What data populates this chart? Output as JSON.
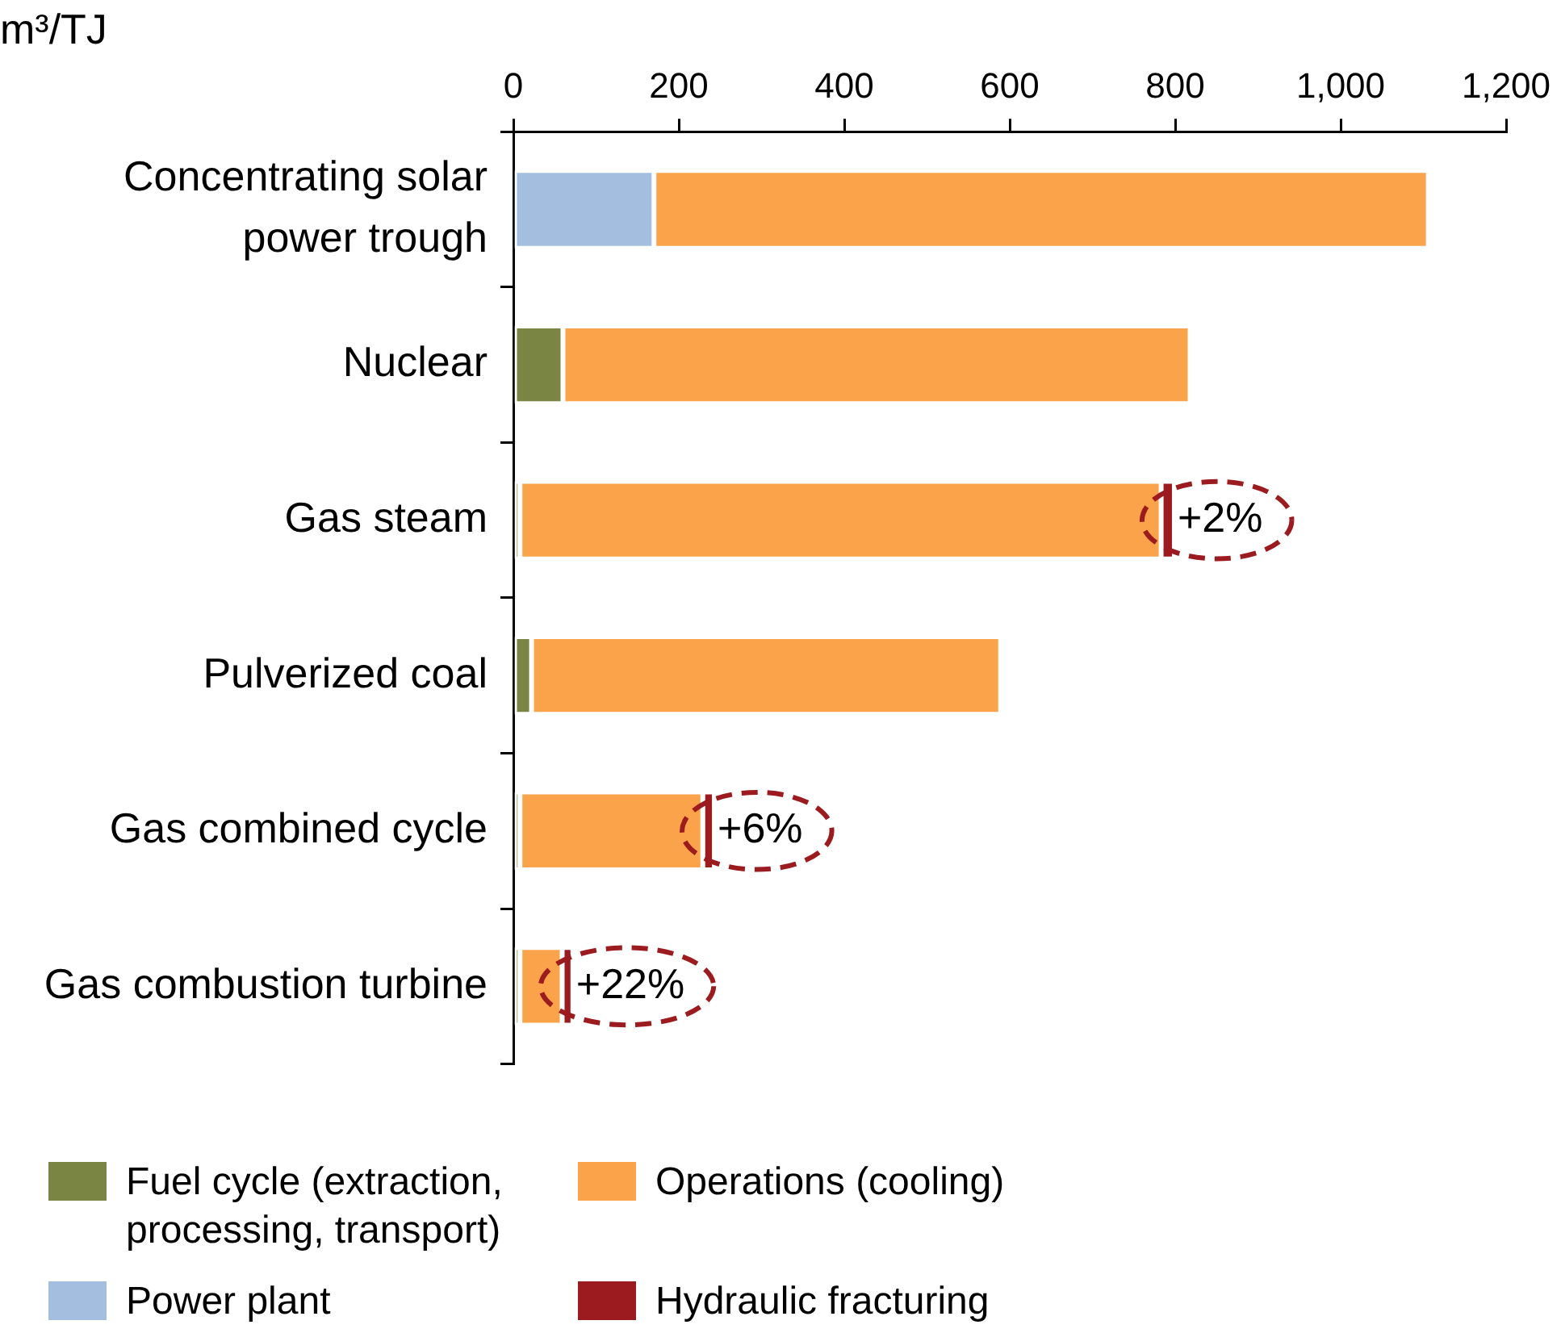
{
  "chart_data": {
    "type": "bar",
    "orientation": "horizontal",
    "stacked": true,
    "title": "m³/TJ",
    "categories": [
      "Concentrating solar power trough",
      "Nuclear",
      "Gas steam",
      "Pulverized coal",
      "Gas combined cycle",
      "Gas combustion turbine"
    ],
    "series": [
      {
        "name": "Fuel cycle (extraction, processing, transport)",
        "color": "#7a8443",
        "values": [
          0,
          60,
          8,
          22,
          8,
          8
        ]
      },
      {
        "name": "Power plant",
        "color": "#a4bedf",
        "values": [
          170,
          0,
          0,
          0,
          0,
          0
        ]
      },
      {
        "name": "Operations (cooling)",
        "color": "#fba34a",
        "values": [
          936,
          758,
          775,
          567,
          221,
          51
        ]
      },
      {
        "name": "Hydraulic fracturing",
        "color": "#9c1b1f",
        "values": [
          0,
          0,
          16,
          0,
          14,
          13
        ]
      }
    ],
    "xlim": [
      0,
      1200
    ],
    "xticks": [
      0,
      200,
      400,
      600,
      800,
      {
        "value": 1000,
        "label": "1,000"
      },
      {
        "value": 1200,
        "label": "1,200"
      }
    ],
    "annotations": [
      {
        "text": "+2%",
        "x": 799,
        "y": "Gas steam"
      },
      {
        "text": "+6%",
        "x": 243,
        "y": "Gas combined cycle"
      },
      {
        "text": "+22%",
        "x": 72,
        "y": "Gas combustion turbine"
      }
    ],
    "grid": false,
    "legend": "bottom"
  }
}
